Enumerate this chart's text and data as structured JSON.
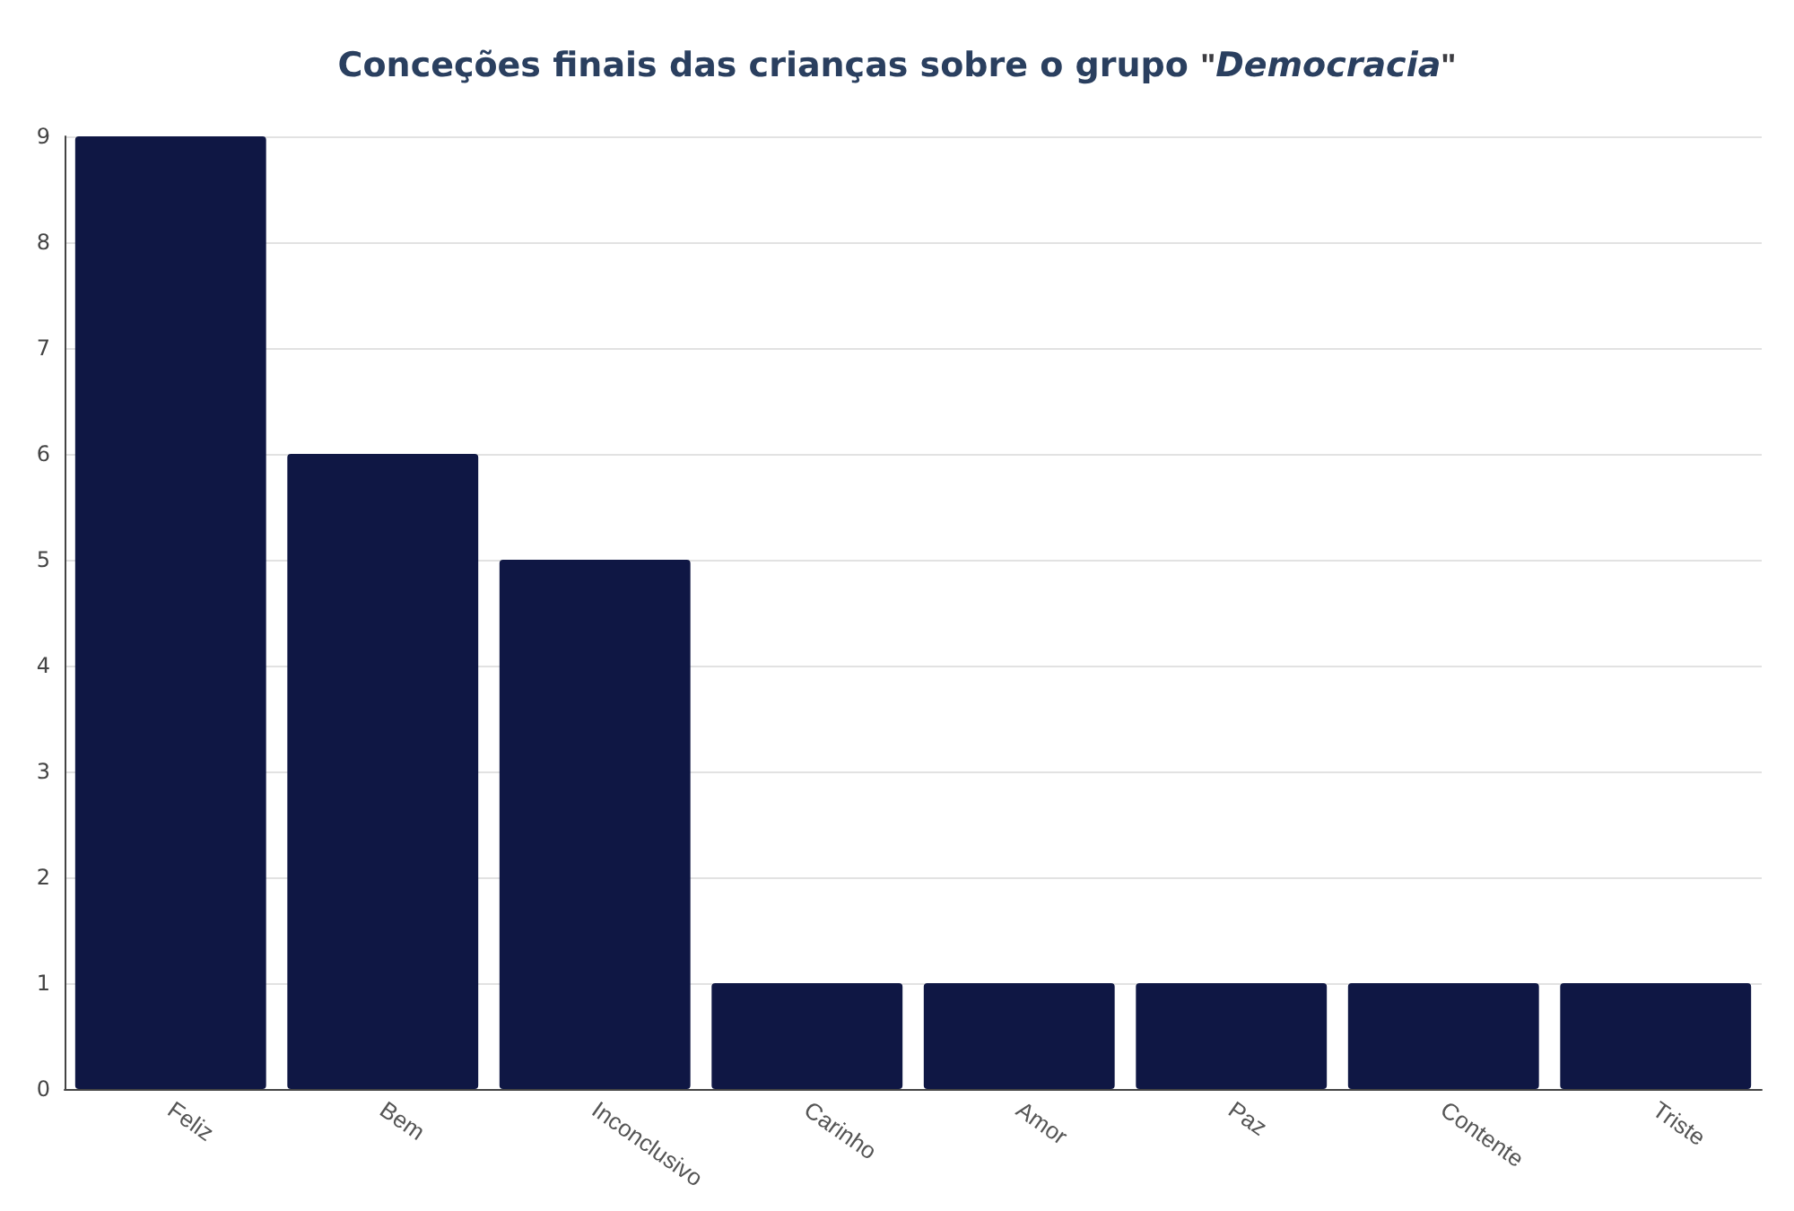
{
  "chart_data": {
    "type": "bar",
    "title": "Conceções finais das crianças sobre o grupo \"Democracia\"",
    "categories": [
      "Feliz",
      "Bem",
      "Inconclusivo",
      "Carinho",
      "Amor",
      "Paz",
      "Contente",
      "Triste"
    ],
    "values": [
      9,
      6,
      5,
      1,
      1,
      1,
      1,
      1
    ],
    "color": "#0f1744",
    "ylim": [
      0,
      9
    ],
    "yticks": [
      0,
      1,
      2,
      3,
      4,
      5,
      6,
      7,
      8,
      9
    ],
    "grid": "y"
  }
}
